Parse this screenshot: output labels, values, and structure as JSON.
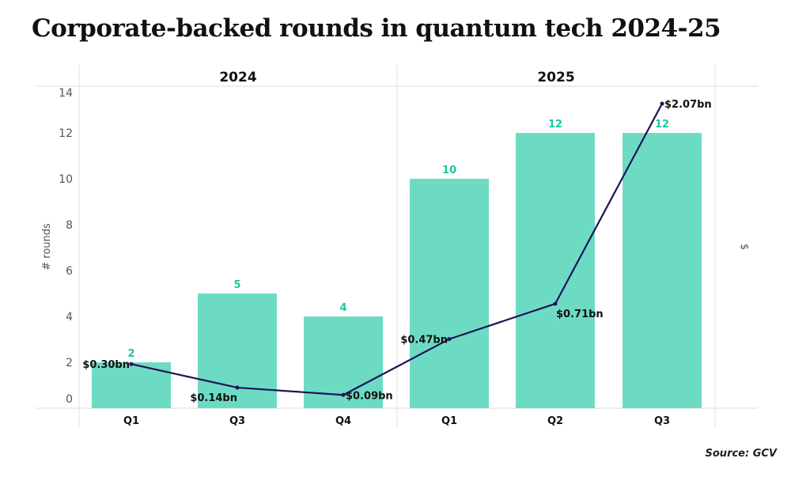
{
  "title": "Corporate-backed rounds in quantum tech 2024-25",
  "source": "Source: GCV",
  "chart_data": {
    "type": "bar+line",
    "title": "Corporate-backed rounds in quantum tech 2024-25",
    "ylabel": "# rounds",
    "y2label": "$",
    "ylim": [
      0,
      14
    ],
    "yticks": [
      0,
      2,
      4,
      6,
      8,
      10,
      12,
      14
    ],
    "grid": false,
    "groups": [
      {
        "label": "2024",
        "categories": [
          "Q1",
          "Q3",
          "Q4"
        ]
      },
      {
        "label": "2025",
        "categories": [
          "Q1",
          "Q2",
          "Q3"
        ]
      }
    ],
    "series": [
      {
        "type": "bar",
        "values": [
          2,
          5,
          4,
          10,
          12,
          12
        ],
        "labels": [
          "2",
          "5",
          "4",
          "10",
          "12",
          "12"
        ],
        "color": "#6ddbc4",
        "label_color": "#19c8a0"
      },
      {
        "type": "line",
        "unit": "$bn",
        "values": [
          0.3,
          0.14,
          0.09,
          0.47,
          0.71,
          2.07
        ],
        "labels": [
          "$0.30bn",
          "$0.14bn",
          "$0.09bn",
          "$0.47bn",
          "$0.71bn",
          "$2.07bn"
        ],
        "color": "#1f1259"
      }
    ]
  }
}
